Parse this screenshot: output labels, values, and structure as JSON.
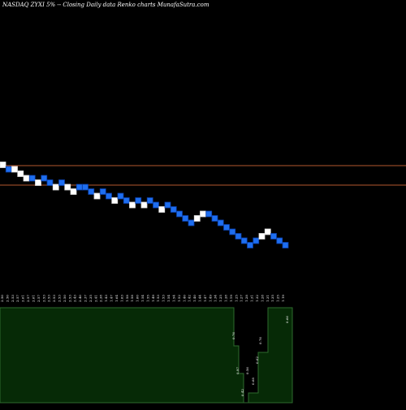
{
  "chart_data": {
    "type": "renko",
    "title": "NASDAQ ZYXI 5% -- Closing Daily data Renko charts MunafaSutra.com",
    "xlabel": "",
    "ylabel": "",
    "brick_direction": [
      "up",
      "down",
      "up",
      "up",
      "up",
      "down",
      "up",
      "down",
      "down",
      "up",
      "down",
      "up",
      "up",
      "down",
      "down",
      "down",
      "up",
      "down",
      "down",
      "up",
      "down",
      "down",
      "up",
      "down",
      "up",
      "down",
      "down",
      "up",
      "down",
      "down",
      "down",
      "down",
      "down",
      "up",
      "up",
      "down",
      "down",
      "down",
      "down",
      "down",
      "down",
      "down",
      "down",
      "down",
      "up",
      "up",
      "down",
      "down",
      "down"
    ],
    "brick_index": [
      0,
      1,
      1,
      2,
      3,
      3,
      4,
      3,
      4,
      5,
      4,
      5,
      6,
      5,
      5,
      6,
      7,
      6,
      7,
      8,
      7,
      8,
      9,
      8,
      9,
      8,
      9,
      10,
      9,
      10,
      11,
      12,
      13,
      12,
      11,
      11,
      12,
      13,
      14,
      15,
      16,
      17,
      18,
      17,
      16,
      15,
      16,
      17,
      18
    ],
    "tick_labels": [
      "2.50",
      "2.50",
      "2.53",
      "2.57",
      "2.61",
      "2.57",
      "2.61",
      "2.57",
      "2.53",
      "2.53",
      "2.53",
      "2.53",
      "2.50",
      "2.53",
      "2.43",
      "2.40",
      "2.37",
      "2.35",
      "2.41",
      "2.38",
      "1.43",
      "1.47",
      "1.64",
      "1.63",
      "1.58",
      "1.58",
      "1.60",
      "1.54",
      "1.55",
      "1.49",
      "1.53",
      "1.53",
      "1.54",
      "1.54",
      "1.52",
      "1.40",
      "1.42",
      "1.40",
      "1.44",
      "1.47",
      "1.49",
      "1.34",
      "1.25",
      "1.28",
      "1.19",
      "1.25",
      "1.27",
      "1.28",
      "1.31",
      "1.32",
      "1.28",
      "1.31",
      "1.35",
      "1.25",
      "1.19"
    ],
    "volume_labels": [
      {
        "text": "0.76",
        "value": 0.76
      },
      {
        "text": "0.97",
        "value": 0.97
      },
      {
        "text": "0.42",
        "value": 0.42
      },
      {
        "text": "0.56",
        "value": 0.56
      },
      {
        "text": "0.68",
        "value": 0.68
      },
      {
        "text": "0.62",
        "value": 0.62
      },
      {
        "text": "0.76",
        "value": 0.76
      },
      {
        "text": "0.66",
        "value": 0.66
      }
    ],
    "grid": false,
    "colors": {
      "background": "#000000",
      "up_brick": "#ffffff",
      "down_brick": "#1e6ef0",
      "down_brick_border": "#0a3fa8",
      "reference_line": "#b5582e",
      "volume_fill": "#062a06",
      "volume_border": "#2e6b2e",
      "label": "#ffffff"
    }
  }
}
